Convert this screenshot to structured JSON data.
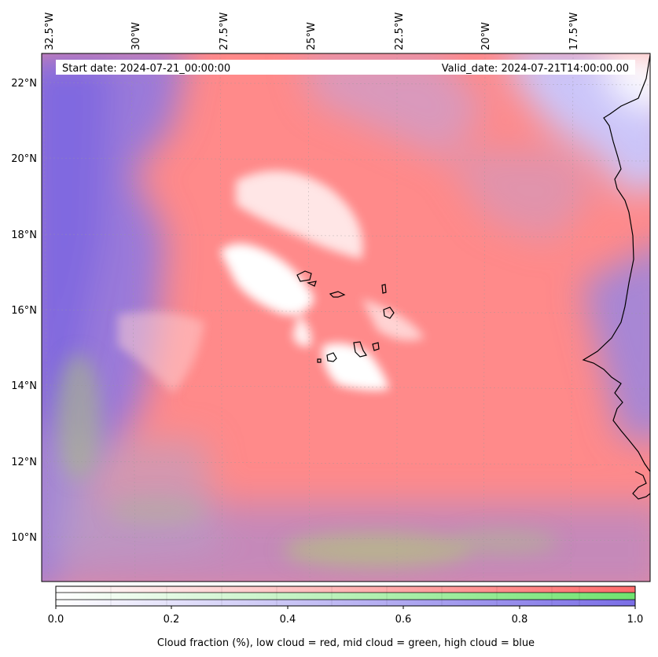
{
  "map": {
    "start_label": "Start date: 2024-07-21_00:00:00",
    "valid_label": "Valid_date: 2024-07-21T14:00:00.00",
    "lon_ticks": [
      "32.5°W",
      "30°W",
      "27.5°W",
      "25°W",
      "22.5°W",
      "20°W",
      "17.5°W"
    ],
    "lat_ticks": [
      "22°N",
      "20°N",
      "18°N",
      "16°N",
      "14°N",
      "12°N",
      "10°N"
    ],
    "extent": {
      "lon_min": -32.9,
      "lon_max": -15.7,
      "lat_min": 8.8,
      "lat_max": 22.8
    },
    "colors": {
      "low_cloud": "#ff8080",
      "mid_cloud": "#80ee80",
      "high_cloud": "#8080ee"
    }
  },
  "colorbar": {
    "ticks": [
      "0.0",
      "0.2",
      "0.4",
      "0.6",
      "0.8",
      "1.0"
    ],
    "label": "Cloud fraction (%), low cloud = red, mid cloud = green, high cloud = blue"
  }
}
